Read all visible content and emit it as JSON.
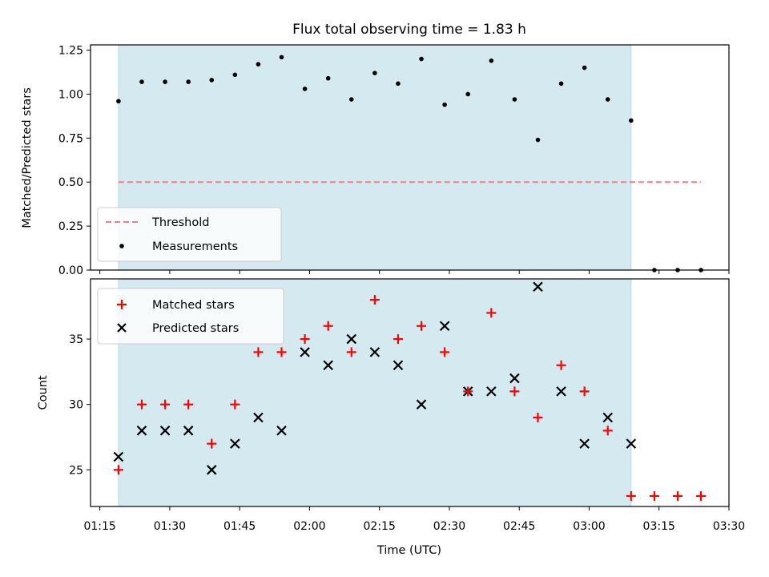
{
  "chart_data": [
    {
      "type": "scatter",
      "title": "Flux total observing time = 1.83 h",
      "xlabel": "",
      "ylabel": "Matched/Predicted stars",
      "ylim": [
        0,
        1.28
      ],
      "yticks": [
        0.0,
        0.25,
        0.5,
        0.75,
        1.0,
        1.25
      ],
      "ytick_labels": [
        "0.00",
        "0.25",
        "0.50",
        "0.75",
        "1.00",
        "1.25"
      ],
      "shaded_xrange": [
        "01:19",
        "03:09"
      ],
      "threshold": {
        "name": "Threshold",
        "value": 0.5,
        "x_range": [
          "01:19",
          "03:24"
        ],
        "color": "#f08080",
        "style": "dashed"
      },
      "series": [
        {
          "name": "Measurements",
          "marker": "dot",
          "color": "#000000",
          "x": [
            "01:19",
            "01:24",
            "01:29",
            "01:34",
            "01:39",
            "01:44",
            "01:49",
            "01:54",
            "01:59",
            "02:04",
            "02:09",
            "02:14",
            "02:19",
            "02:24",
            "02:29",
            "02:34",
            "02:39",
            "02:44",
            "02:49",
            "02:54",
            "02:59",
            "03:04",
            "03:09",
            "03:14",
            "03:19",
            "03:24"
          ],
          "y": [
            0.96,
            1.07,
            1.07,
            1.07,
            1.08,
            1.11,
            1.17,
            1.21,
            1.03,
            1.09,
            0.97,
            1.12,
            1.06,
            1.2,
            0.94,
            1.0,
            1.19,
            0.97,
            0.74,
            1.06,
            1.15,
            0.97,
            0.85,
            0.0,
            0.0,
            0.0
          ]
        }
      ],
      "legend_position": "lower-left"
    },
    {
      "type": "scatter",
      "title": "",
      "xlabel": "Time (UTC)",
      "ylabel": "Count",
      "ylim": [
        22.2,
        39.6
      ],
      "yticks": [
        25,
        30,
        35
      ],
      "xlim": [
        "01:13",
        "03:30"
      ],
      "xticks": [
        "01:15",
        "01:30",
        "01:45",
        "02:00",
        "02:15",
        "02:30",
        "02:45",
        "03:00",
        "03:15",
        "03:30"
      ],
      "shaded_xrange": [
        "01:19",
        "03:09"
      ],
      "series": [
        {
          "name": "Matched stars",
          "marker": "plus",
          "color": "#ff0000",
          "x": [
            "01:19",
            "01:24",
            "01:29",
            "01:34",
            "01:39",
            "01:44",
            "01:49",
            "01:54",
            "01:59",
            "02:04",
            "02:09",
            "02:14",
            "02:19",
            "02:24",
            "02:29",
            "02:34",
            "02:39",
            "02:44",
            "02:49",
            "02:54",
            "02:59",
            "03:04",
            "03:09",
            "03:14",
            "03:19",
            "03:24"
          ],
          "y": [
            25,
            30,
            30,
            30,
            27,
            30,
            34,
            34,
            35,
            36,
            34,
            38,
            35,
            36,
            34,
            31,
            37,
            31,
            29,
            33,
            31,
            28,
            23,
            23,
            23,
            23
          ]
        },
        {
          "name": "Predicted stars",
          "marker": "x",
          "color": "#000000",
          "x": [
            "01:19",
            "01:24",
            "01:29",
            "01:34",
            "01:39",
            "01:44",
            "01:49",
            "01:54",
            "01:59",
            "02:04",
            "02:09",
            "02:14",
            "02:19",
            "02:24",
            "02:29",
            "02:34",
            "02:39",
            "02:44",
            "02:49",
            "02:54",
            "02:59",
            "03:04",
            "03:09"
          ],
          "y": [
            26,
            28,
            28,
            28,
            25,
            27,
            29,
            28,
            34,
            33,
            35,
            34,
            33,
            30,
            36,
            31,
            31,
            32,
            39,
            31,
            27,
            29,
            27
          ]
        }
      ],
      "legend_position": "top-left"
    }
  ],
  "colors": {
    "shade": "#d4eaf0",
    "shade_edge": "#b9dbe6",
    "threshold": "#f08080",
    "matched": "#ff0000",
    "predicted": "#000000"
  }
}
